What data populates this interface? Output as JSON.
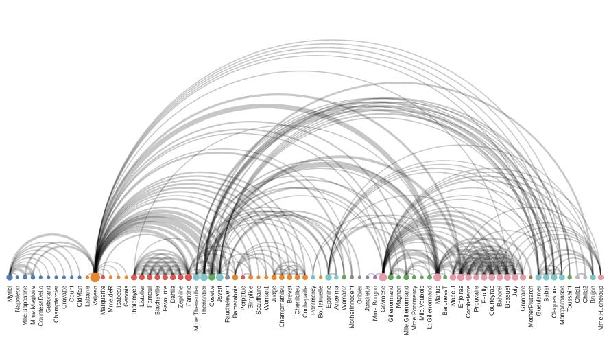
{
  "title": "",
  "groups": {
    "1": "#4f7db8",
    "2": "#e8872e",
    "3": "#d9584f",
    "4": "#7cc6c9",
    "5": "#62a85a",
    "6": "#c1a03f",
    "7": "#a576b5",
    "8": "#e89aa8",
    "9": "#9e7a5c",
    "10": "#b8b8b8"
  },
  "nodes": [
    {
      "name": "Myriel",
      "group": 1,
      "degree": 10
    },
    {
      "name": "Napoleon",
      "group": 1,
      "degree": 1
    },
    {
      "name": "Mlle.Baptistine",
      "group": 1,
      "degree": 3
    },
    {
      "name": "Mme.Magloire",
      "group": 1,
      "degree": 3
    },
    {
      "name": "CountessDeLo",
      "group": 1,
      "degree": 1
    },
    {
      "name": "Geborand",
      "group": 1,
      "degree": 1
    },
    {
      "name": "Champtercier",
      "group": 1,
      "degree": 1
    },
    {
      "name": "Cravatte",
      "group": 1,
      "degree": 1
    },
    {
      "name": "Count",
      "group": 1,
      "degree": 1
    },
    {
      "name": "OldMan",
      "group": 1,
      "degree": 1
    },
    {
      "name": "Labarre",
      "group": 2,
      "degree": 1
    },
    {
      "name": "Valjean",
      "group": 2,
      "degree": 36
    },
    {
      "name": "Marguerite",
      "group": 3,
      "degree": 2
    },
    {
      "name": "Mme.deR",
      "group": 2,
      "degree": 1
    },
    {
      "name": "Isabeau",
      "group": 2,
      "degree": 1
    },
    {
      "name": "Gervais",
      "group": 2,
      "degree": 1
    },
    {
      "name": "Tholomyes",
      "group": 3,
      "degree": 9
    },
    {
      "name": "Listolier",
      "group": 3,
      "degree": 7
    },
    {
      "name": "Fameuil",
      "group": 3,
      "degree": 7
    },
    {
      "name": "Blacheville",
      "group": 3,
      "degree": 7
    },
    {
      "name": "Favourite",
      "group": 3,
      "degree": 7
    },
    {
      "name": "Dahlia",
      "group": 3,
      "degree": 7
    },
    {
      "name": "Zephine",
      "group": 3,
      "degree": 7
    },
    {
      "name": "Fantine",
      "group": 3,
      "degree": 15
    },
    {
      "name": "Mme.Thenardier",
      "group": 4,
      "degree": 11
    },
    {
      "name": "Thenardier",
      "group": 4,
      "degree": 16
    },
    {
      "name": "Cosette",
      "group": 5,
      "degree": 11
    },
    {
      "name": "Javert",
      "group": 4,
      "degree": 17
    },
    {
      "name": "Fauchelevent",
      "group": 0,
      "degree": 4
    },
    {
      "name": "Bamatabois",
      "group": 2,
      "degree": 8
    },
    {
      "name": "Perpetue",
      "group": 3,
      "degree": 2
    },
    {
      "name": "Simplice",
      "group": 2,
      "degree": 4
    },
    {
      "name": "Scaufflaire",
      "group": 2,
      "degree": 1
    },
    {
      "name": "Woman1",
      "group": 2,
      "degree": 2
    },
    {
      "name": "Judge",
      "group": 2,
      "degree": 6
    },
    {
      "name": "Champmathieu",
      "group": 2,
      "degree": 6
    },
    {
      "name": "Brevet",
      "group": 2,
      "degree": 6
    },
    {
      "name": "Chenildieu",
      "group": 2,
      "degree": 6
    },
    {
      "name": "Cochepaille",
      "group": 2,
      "degree": 6
    },
    {
      "name": "Pontmercy",
      "group": 4,
      "degree": 3
    },
    {
      "name": "Boulatruelle",
      "group": 6,
      "degree": 1
    },
    {
      "name": "Eponine",
      "group": 4,
      "degree": 11
    },
    {
      "name": "Anzelma",
      "group": 4,
      "degree": 3
    },
    {
      "name": "Woman2",
      "group": 5,
      "degree": 3
    },
    {
      "name": "MotherInnocent",
      "group": 0,
      "degree": 2
    },
    {
      "name": "Gribier",
      "group": 0,
      "degree": 1
    },
    {
      "name": "Jondrette",
      "group": 7,
      "degree": 1
    },
    {
      "name": "Mme.Burgon",
      "group": 7,
      "degree": 2
    },
    {
      "name": "Gavroche",
      "group": 8,
      "degree": 22
    },
    {
      "name": "Gillenormand",
      "group": 5,
      "degree": 7
    },
    {
      "name": "Magnon",
      "group": 5,
      "degree": 2
    },
    {
      "name": "Mlle.Gillenormand",
      "group": 5,
      "degree": 7
    },
    {
      "name": "Mme.Pontmercy",
      "group": 5,
      "degree": 2
    },
    {
      "name": "Mlle.Vaubois",
      "group": 5,
      "degree": 1
    },
    {
      "name": "Lt.Gillenormand",
      "group": 5,
      "degree": 4
    },
    {
      "name": "Marius",
      "group": 8,
      "degree": 19
    },
    {
      "name": "BaronessT",
      "group": 5,
      "degree": 2
    },
    {
      "name": "Mabeuf",
      "group": 8,
      "degree": 11
    },
    {
      "name": "Enjolras",
      "group": 8,
      "degree": 15
    },
    {
      "name": "Combeferre",
      "group": 8,
      "degree": 11
    },
    {
      "name": "Prouvaire",
      "group": 8,
      "degree": 9
    },
    {
      "name": "Feuilly",
      "group": 8,
      "degree": 11
    },
    {
      "name": "Courfeyrac",
      "group": 8,
      "degree": 13
    },
    {
      "name": "Bahorel",
      "group": 8,
      "degree": 12
    },
    {
      "name": "Bossuet",
      "group": 8,
      "degree": 13
    },
    {
      "name": "Joly",
      "group": 8,
      "degree": 12
    },
    {
      "name": "Grantaire",
      "group": 8,
      "degree": 10
    },
    {
      "name": "MotherPlutarch",
      "group": 9,
      "degree": 1
    },
    {
      "name": "Gueulemer",
      "group": 4,
      "degree": 10
    },
    {
      "name": "Babet",
      "group": 4,
      "degree": 10
    },
    {
      "name": "Claquesous",
      "group": 4,
      "degree": 10
    },
    {
      "name": "Montparnasse",
      "group": 4,
      "degree": 9
    },
    {
      "name": "Toussaint",
      "group": 5,
      "degree": 3
    },
    {
      "name": "Child1",
      "group": 10,
      "degree": 2
    },
    {
      "name": "Child2",
      "group": 10,
      "degree": 2
    },
    {
      "name": "Brujon",
      "group": 4,
      "degree": 7
    },
    {
      "name": "Mme.Hucheloup",
      "group": 8,
      "degree": 7
    }
  ],
  "links": [
    [
      1,
      0,
      1
    ],
    [
      2,
      0,
      8
    ],
    [
      3,
      0,
      10
    ],
    [
      3,
      2,
      6
    ],
    [
      4,
      0,
      1
    ],
    [
      5,
      0,
      1
    ],
    [
      6,
      0,
      1
    ],
    [
      7,
      0,
      1
    ],
    [
      8,
      0,
      2
    ],
    [
      9,
      0,
      1
    ],
    [
      11,
      10,
      1
    ],
    [
      11,
      3,
      3
    ],
    [
      11,
      2,
      3
    ],
    [
      11,
      0,
      5
    ],
    [
      12,
      11,
      1
    ],
    [
      13,
      11,
      1
    ],
    [
      14,
      11,
      1
    ],
    [
      15,
      11,
      1
    ],
    [
      17,
      16,
      4
    ],
    [
      18,
      16,
      4
    ],
    [
      18,
      17,
      4
    ],
    [
      19,
      16,
      4
    ],
    [
      19,
      17,
      4
    ],
    [
      19,
      18,
      4
    ],
    [
      20,
      16,
      3
    ],
    [
      20,
      17,
      3
    ],
    [
      20,
      18,
      3
    ],
    [
      20,
      19,
      4
    ],
    [
      21,
      16,
      3
    ],
    [
      21,
      17,
      3
    ],
    [
      21,
      18,
      3
    ],
    [
      21,
      19,
      3
    ],
    [
      21,
      20,
      5
    ],
    [
      22,
      16,
      3
    ],
    [
      22,
      17,
      3
    ],
    [
      22,
      18,
      3
    ],
    [
      22,
      19,
      3
    ],
    [
      22,
      20,
      4
    ],
    [
      22,
      21,
      4
    ],
    [
      23,
      16,
      3
    ],
    [
      23,
      17,
      3
    ],
    [
      23,
      18,
      3
    ],
    [
      23,
      19,
      3
    ],
    [
      23,
      20,
      4
    ],
    [
      23,
      21,
      4
    ],
    [
      23,
      22,
      4
    ],
    [
      23,
      12,
      2
    ],
    [
      23,
      11,
      9
    ],
    [
      24,
      23,
      2
    ],
    [
      24,
      11,
      7
    ],
    [
      25,
      24,
      13
    ],
    [
      25,
      23,
      1
    ],
    [
      25,
      11,
      12
    ],
    [
      26,
      24,
      4
    ],
    [
      26,
      11,
      31
    ],
    [
      26,
      16,
      1
    ],
    [
      26,
      25,
      1
    ],
    [
      27,
      11,
      17
    ],
    [
      27,
      23,
      5
    ],
    [
      27,
      25,
      5
    ],
    [
      27,
      24,
      1
    ],
    [
      27,
      26,
      1
    ],
    [
      28,
      11,
      8
    ],
    [
      28,
      27,
      1
    ],
    [
      29,
      23,
      1
    ],
    [
      29,
      27,
      1
    ],
    [
      29,
      11,
      2
    ],
    [
      30,
      23,
      1
    ],
    [
      31,
      30,
      2
    ],
    [
      31,
      11,
      3
    ],
    [
      31,
      23,
      2
    ],
    [
      31,
      27,
      1
    ],
    [
      32,
      11,
      1
    ],
    [
      33,
      11,
      2
    ],
    [
      33,
      27,
      1
    ],
    [
      34,
      11,
      3
    ],
    [
      34,
      29,
      2
    ],
    [
      35,
      11,
      3
    ],
    [
      35,
      34,
      3
    ],
    [
      35,
      29,
      2
    ],
    [
      36,
      34,
      2
    ],
    [
      36,
      35,
      2
    ],
    [
      36,
      11,
      2
    ],
    [
      36,
      29,
      1
    ],
    [
      37,
      34,
      2
    ],
    [
      37,
      35,
      2
    ],
    [
      37,
      36,
      2
    ],
    [
      37,
      11,
      2
    ],
    [
      37,
      29,
      1
    ],
    [
      38,
      34,
      2
    ],
    [
      38,
      35,
      2
    ],
    [
      38,
      36,
      2
    ],
    [
      38,
      37,
      2
    ],
    [
      38,
      11,
      2
    ],
    [
      38,
      29,
      1
    ],
    [
      39,
      25,
      1
    ],
    [
      40,
      25,
      1
    ],
    [
      41,
      24,
      2
    ],
    [
      41,
      25,
      3
    ],
    [
      42,
      41,
      2
    ],
    [
      42,
      25,
      2
    ],
    [
      42,
      24,
      1
    ],
    [
      43,
      11,
      3
    ],
    [
      43,
      26,
      1
    ],
    [
      43,
      27,
      1
    ],
    [
      44,
      28,
      3
    ],
    [
      44,
      11,
      1
    ],
    [
      45,
      28,
      2
    ],
    [
      47,
      46,
      1
    ],
    [
      48,
      47,
      2
    ],
    [
      48,
      25,
      1
    ],
    [
      48,
      27,
      1
    ],
    [
      48,
      11,
      1
    ],
    [
      49,
      26,
      3
    ],
    [
      49,
      11,
      2
    ],
    [
      50,
      49,
      1
    ],
    [
      50,
      24,
      1
    ],
    [
      51,
      49,
      9
    ],
    [
      51,
      26,
      2
    ],
    [
      51,
      11,
      2
    ],
    [
      52,
      51,
      1
    ],
    [
      52,
      39,
      1
    ],
    [
      53,
      51,
      1
    ],
    [
      54,
      51,
      2
    ],
    [
      54,
      49,
      1
    ],
    [
      54,
      26,
      1
    ],
    [
      55,
      51,
      6
    ],
    [
      55,
      49,
      12
    ],
    [
      55,
      39,
      1
    ],
    [
      55,
      54,
      1
    ],
    [
      55,
      26,
      21
    ],
    [
      55,
      11,
      19
    ],
    [
      55,
      16,
      1
    ],
    [
      55,
      25,
      2
    ],
    [
      55,
      41,
      5
    ],
    [
      55,
      48,
      4
    ],
    [
      56,
      49,
      1
    ],
    [
      56,
      55,
      1
    ],
    [
      57,
      55,
      1
    ],
    [
      57,
      41,
      1
    ],
    [
      57,
      48,
      1
    ],
    [
      58,
      55,
      7
    ],
    [
      58,
      48,
      7
    ],
    [
      58,
      27,
      6
    ],
    [
      58,
      57,
      1
    ],
    [
      58,
      11,
      4
    ],
    [
      59,
      58,
      15
    ],
    [
      59,
      55,
      5
    ],
    [
      59,
      48,
      6
    ],
    [
      59,
      57,
      2
    ],
    [
      60,
      48,
      1
    ],
    [
      60,
      58,
      4
    ],
    [
      60,
      59,
      2
    ],
    [
      61,
      48,
      2
    ],
    [
      61,
      58,
      6
    ],
    [
      61,
      60,
      2
    ],
    [
      61,
      59,
      5
    ],
    [
      61,
      57,
      1
    ],
    [
      61,
      55,
      1
    ],
    [
      62,
      55,
      9
    ],
    [
      62,
      58,
      17
    ],
    [
      62,
      59,
      13
    ],
    [
      62,
      48,
      7
    ],
    [
      62,
      57,
      2
    ],
    [
      62,
      41,
      1
    ],
    [
      62,
      61,
      6
    ],
    [
      62,
      60,
      3
    ],
    [
      63,
      59,
      5
    ],
    [
      63,
      48,
      5
    ],
    [
      63,
      62,
      6
    ],
    [
      63,
      57,
      2
    ],
    [
      63,
      58,
      4
    ],
    [
      63,
      61,
      3
    ],
    [
      63,
      60,
      2
    ],
    [
      63,
      55,
      1
    ],
    [
      64,
      55,
      5
    ],
    [
      64,
      62,
      12
    ],
    [
      64,
      48,
      5
    ],
    [
      64,
      63,
      4
    ],
    [
      64,
      58,
      10
    ],
    [
      64,
      61,
      6
    ],
    [
      64,
      60,
      2
    ],
    [
      64,
      59,
      9
    ],
    [
      64,
      57,
      1
    ],
    [
      64,
      11,
      1
    ],
    [
      65,
      63,
      5
    ],
    [
      65,
      64,
      7
    ],
    [
      65,
      48,
      3
    ],
    [
      65,
      62,
      5
    ],
    [
      65,
      58,
      5
    ],
    [
      65,
      61,
      5
    ],
    [
      65,
      60,
      2
    ],
    [
      65,
      59,
      5
    ],
    [
      65,
      57,
      1
    ],
    [
      65,
      55,
      2
    ],
    [
      66,
      64,
      3
    ],
    [
      66,
      58,
      3
    ],
    [
      66,
      59,
      1
    ],
    [
      66,
      62,
      2
    ],
    [
      66,
      65,
      2
    ],
    [
      66,
      48,
      1
    ],
    [
      66,
      63,
      1
    ],
    [
      66,
      61,
      1
    ],
    [
      66,
      60,
      1
    ],
    [
      67,
      57,
      3
    ],
    [
      68,
      25,
      5
    ],
    [
      68,
      11,
      1
    ],
    [
      68,
      24,
      1
    ],
    [
      68,
      27,
      1
    ],
    [
      68,
      48,
      1
    ],
    [
      68,
      41,
      1
    ],
    [
      69,
      25,
      6
    ],
    [
      69,
      68,
      6
    ],
    [
      69,
      11,
      1
    ],
    [
      69,
      24,
      1
    ],
    [
      69,
      27,
      2
    ],
    [
      69,
      48,
      1
    ],
    [
      69,
      41,
      1
    ],
    [
      70,
      25,
      4
    ],
    [
      70,
      69,
      4
    ],
    [
      70,
      68,
      4
    ],
    [
      70,
      11,
      1
    ],
    [
      70,
      24,
      1
    ],
    [
      70,
      27,
      1
    ],
    [
      70,
      41,
      1
    ],
    [
      70,
      58,
      1
    ],
    [
      71,
      27,
      1
    ],
    [
      71,
      69,
      2
    ],
    [
      71,
      68,
      2
    ],
    [
      71,
      70,
      2
    ],
    [
      71,
      11,
      1
    ],
    [
      71,
      48,
      1
    ],
    [
      71,
      41,
      1
    ],
    [
      71,
      25,
      1
    ],
    [
      72,
      26,
      2
    ],
    [
      72,
      27,
      1
    ],
    [
      72,
      11,
      1
    ],
    [
      73,
      48,
      2
    ],
    [
      74,
      48,
      2
    ],
    [
      74,
      73,
      3
    ],
    [
      75,
      69,
      3
    ],
    [
      75,
      68,
      3
    ],
    [
      75,
      25,
      3
    ],
    [
      75,
      48,
      1
    ],
    [
      75,
      41,
      1
    ],
    [
      75,
      70,
      1
    ],
    [
      75,
      71,
      1
    ],
    [
      76,
      64,
      1
    ],
    [
      76,
      65,
      1
    ],
    [
      76,
      66,
      1
    ],
    [
      76,
      63,
      1
    ],
    [
      76,
      62,
      1
    ],
    [
      76,
      48,
      1
    ],
    [
      76,
      58,
      1
    ]
  ]
}
